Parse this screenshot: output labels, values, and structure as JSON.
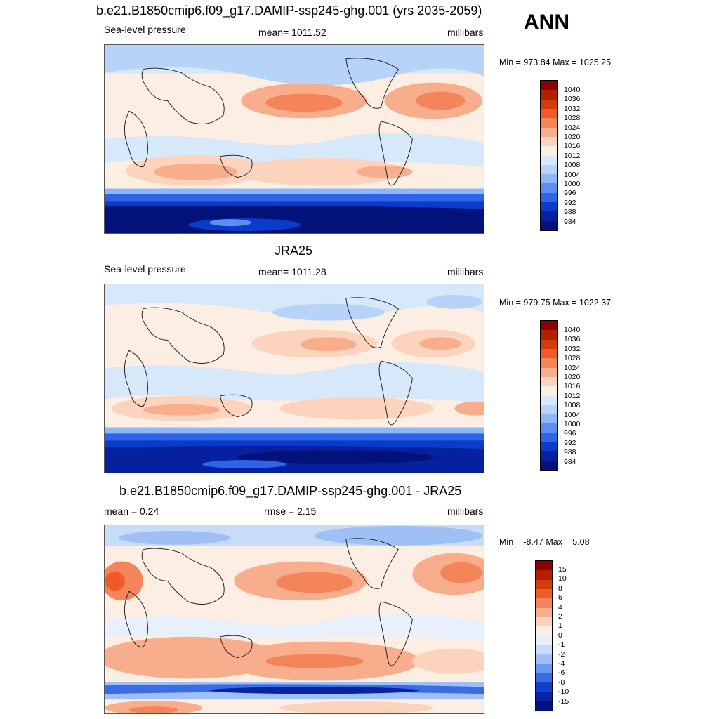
{
  "season": "ANN",
  "panels": [
    {
      "title": "b.e21.B1850cmip6.f09_g17.DAMIP-ssp245-ghg.001 (yrs 2035-2059)",
      "left_label": "Sea-level pressure",
      "center_label": "mean= 1011.52",
      "right_label": "millibars",
      "minmax": "Min = 973.84 Max = 1025.25",
      "colorbar_ticks": [
        "1040",
        "1036",
        "1032",
        "1028",
        "1024",
        "1020",
        "1016",
        "1012",
        "1008",
        "1004",
        "1000",
        "996",
        "992",
        "988",
        "984"
      ]
    },
    {
      "title": "JRA25",
      "left_label": "Sea-level pressure",
      "center_label": "mean= 1011.28",
      "right_label": "millibars",
      "minmax": "Min = 979.75 Max = 1022.37",
      "colorbar_ticks": [
        "1040",
        "1036",
        "1032",
        "1028",
        "1024",
        "1020",
        "1016",
        "1012",
        "1008",
        "1004",
        "1000",
        "996",
        "992",
        "988",
        "984"
      ]
    },
    {
      "title": "b.e21.B1850cmip6.f09_g17.DAMIP-ssp245-ghg.001 - JRA25",
      "left_label": "mean =   0.24",
      "center_label": "rmse =   2.15",
      "right_label": "millibars",
      "minmax": "Min =  -8.47 Max =   5.08",
      "colorbar_ticks": [
        "15",
        "10",
        "8",
        "6",
        "4",
        "2",
        "1",
        "0",
        "-1",
        "-2",
        "-4",
        "-6",
        "-8",
        "-10",
        "-15"
      ]
    }
  ],
  "colors": {
    "field_scale": [
      "#8b0000",
      "#b22000",
      "#d63a0a",
      "#f05a28",
      "#f4855a",
      "#f8ae8c",
      "#fcd3bc",
      "#fdeee3",
      "#d8e8fb",
      "#b8d3f8",
      "#8eb7f5",
      "#5d8ff2",
      "#2f63e8",
      "#0a3ccc",
      "#0620a0",
      "#01127a"
    ],
    "diff_scale": [
      "#8b0000",
      "#b22000",
      "#d63a0a",
      "#f05a28",
      "#f4855a",
      "#f8ae8c",
      "#fcd3bc",
      "#fdeee3",
      "#e8f0fc",
      "#c8dcf8",
      "#9fc0f5",
      "#6b98f0",
      "#3b6ce6",
      "#1240cc",
      "#0624a3",
      "#01127a"
    ]
  }
}
